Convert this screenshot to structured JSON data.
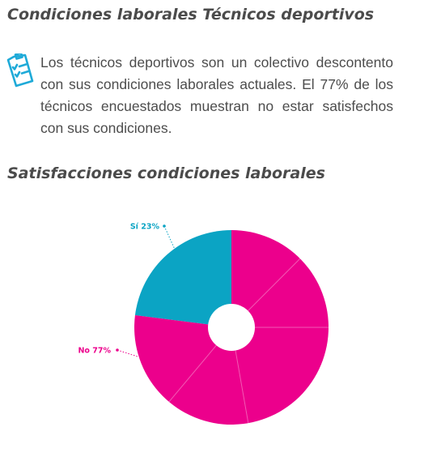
{
  "header": {
    "title": "Condiciones laborales Técnicos deportivos"
  },
  "intro": {
    "icon": "clipboard-checklist-icon",
    "text": "Los técnicos deportivos son un colectivo descontento con sus condiciones laborales actuales. El 77% de los técnicos encuestados muestran no estar satisfechos con sus condiciones."
  },
  "chart_data": {
    "type": "pie",
    "title": "Satisfacciones condiciones laborales",
    "donut": true,
    "categories": [
      "Sí",
      "No"
    ],
    "values": [
      23,
      77
    ],
    "labels": [
      "Sí 23%",
      "No 77%"
    ],
    "colors": [
      "#0ba4c4",
      "#ec008c"
    ],
    "legend": "none"
  },
  "colors": {
    "heading": "#4b4b4b",
    "body_text": "#4d4d4d",
    "icon": "#1eaad8"
  }
}
